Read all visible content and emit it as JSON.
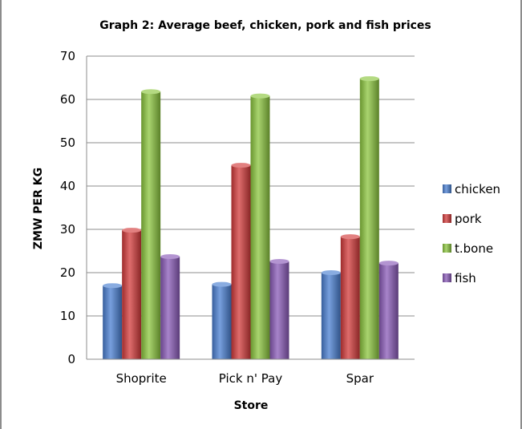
{
  "chart_data": {
    "type": "bar",
    "title": "Graph 2: Average beef, chicken, pork and fish prices",
    "xlabel": "Store",
    "ylabel": "ZMW PER KG",
    "categories": [
      "Shoprite",
      "Pick n' Pay",
      "Spar"
    ],
    "ylim": [
      0,
      70
    ],
    "yticks": [
      0,
      10,
      20,
      30,
      40,
      50,
      60,
      70
    ],
    "grid": true,
    "legend_position": "right",
    "series": [
      {
        "name": "chicken",
        "color": "#4a7fd1",
        "values": [
          17,
          17.3,
          20
        ]
      },
      {
        "name": "pork",
        "color": "#d33b3b",
        "values": [
          29.8,
          44.8,
          28.3
        ]
      },
      {
        "name": "t.bone",
        "color": "#8cc63f",
        "values": [
          61.8,
          60.8,
          64.8
        ]
      },
      {
        "name": "fish",
        "color": "#8a5bb8",
        "values": [
          23.7,
          22.6,
          22.2
        ]
      }
    ]
  }
}
